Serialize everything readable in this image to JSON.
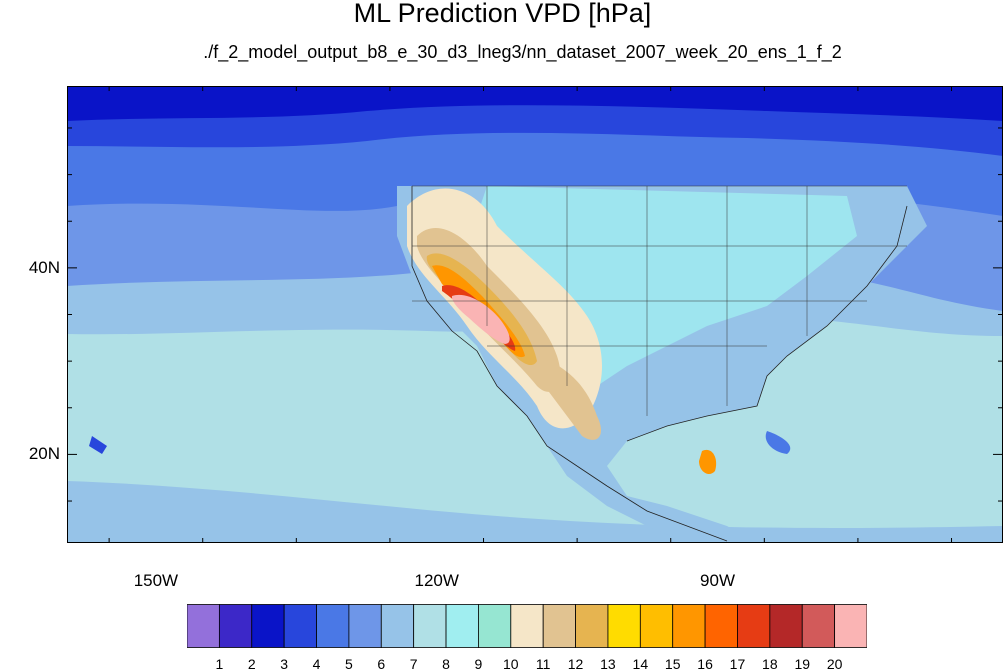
{
  "figure": {
    "title": "ML Prediction VPD [hPa]",
    "subtitle": "./f_2_model_output_b8_e_30_d3_lneg3/nn_dataset_2007_week_20_ens_1_f_2"
  },
  "map": {
    "projection": "cylindrical equidistant",
    "lon_range": [
      -159.5,
      -59.5
    ],
    "lat_range": [
      10.5,
      59.5
    ],
    "lat_ticks": [
      {
        "value": 40,
        "label": "40N"
      },
      {
        "value": 20,
        "label": "20N"
      }
    ],
    "lon_ticks": [
      {
        "value": -150,
        "label": "150W"
      },
      {
        "value": -120,
        "label": "120W"
      },
      {
        "value": -90,
        "label": "90W"
      }
    ],
    "ocean_fill": "#b0e0e6"
  },
  "colorbar": {
    "labels": [
      "1",
      "2",
      "3",
      "4",
      "5",
      "6",
      "7",
      "8",
      "9",
      "10",
      "11",
      "12",
      "13",
      "14",
      "15",
      "16",
      "17",
      "18",
      "19",
      "20"
    ],
    "colors": [
      "#9370db",
      "#3c28c8",
      "#0a14c8",
      "#2846dc",
      "#4a78e6",
      "#6e96e8",
      "#96c3e8",
      "#b0e0e6",
      "#a0eef0",
      "#96e6d2",
      "#f5e6c8",
      "#e1c391",
      "#e6b450",
      "#ffdc00",
      "#ffbe00",
      "#ff9600",
      "#ff6400",
      "#e63c14",
      "#b42828",
      "#d25a5a",
      "#fab4b4"
    ]
  }
}
